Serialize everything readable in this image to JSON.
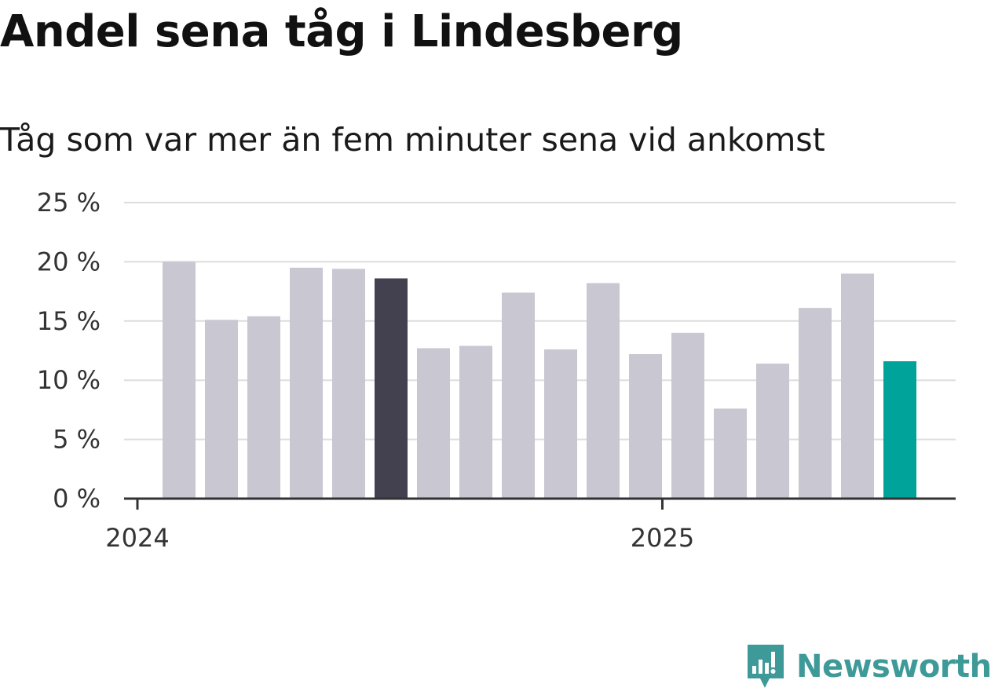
{
  "title": "Andel sena tåg i Lindesberg",
  "subtitle": "Tåg som var mer än fem minuter sena vid ankomst",
  "brand": {
    "name": "Newsworthy",
    "icon": "newsworthy-logo-icon",
    "color": "#3e9a98"
  },
  "colors": {
    "default_bar": "#c8c7d2",
    "highlight_bar": "#43404f",
    "latest_bar": "#00a39a",
    "grid": "#dddddd",
    "axis": "#333333"
  },
  "chart_data": {
    "type": "bar",
    "title": "Andel sena tåg i Lindesberg",
    "subtitle": "Tåg som var mer än fem minuter sena vid ankomst",
    "xlabel": "",
    "ylabel": "",
    "x_tick_labels": [
      "2024",
      "2025"
    ],
    "y_ticks": [
      0,
      5,
      10,
      15,
      20,
      25
    ],
    "y_tick_labels": [
      "0 %",
      "5 %",
      "10 %",
      "15 %",
      "20 %",
      "25 %"
    ],
    "ylim": [
      0,
      25
    ],
    "grid": true,
    "categories": [
      "2024-01",
      "2024-02",
      "2024-03",
      "2024-04",
      "2024-05",
      "2024-06",
      "2024-07",
      "2024-08",
      "2024-09",
      "2024-10",
      "2024-11",
      "2024-12",
      "2025-01",
      "2025-02",
      "2025-03",
      "2025-04",
      "2025-05",
      "2025-06"
    ],
    "values": [
      20.0,
      15.1,
      15.4,
      19.5,
      19.4,
      18.6,
      12.7,
      12.9,
      17.4,
      12.6,
      18.2,
      12.2,
      14.0,
      7.6,
      11.4,
      16.1,
      19.0,
      11.6
    ],
    "highlight": {
      "2024-06": "highlight_bar",
      "2025-06": "latest_bar"
    }
  }
}
